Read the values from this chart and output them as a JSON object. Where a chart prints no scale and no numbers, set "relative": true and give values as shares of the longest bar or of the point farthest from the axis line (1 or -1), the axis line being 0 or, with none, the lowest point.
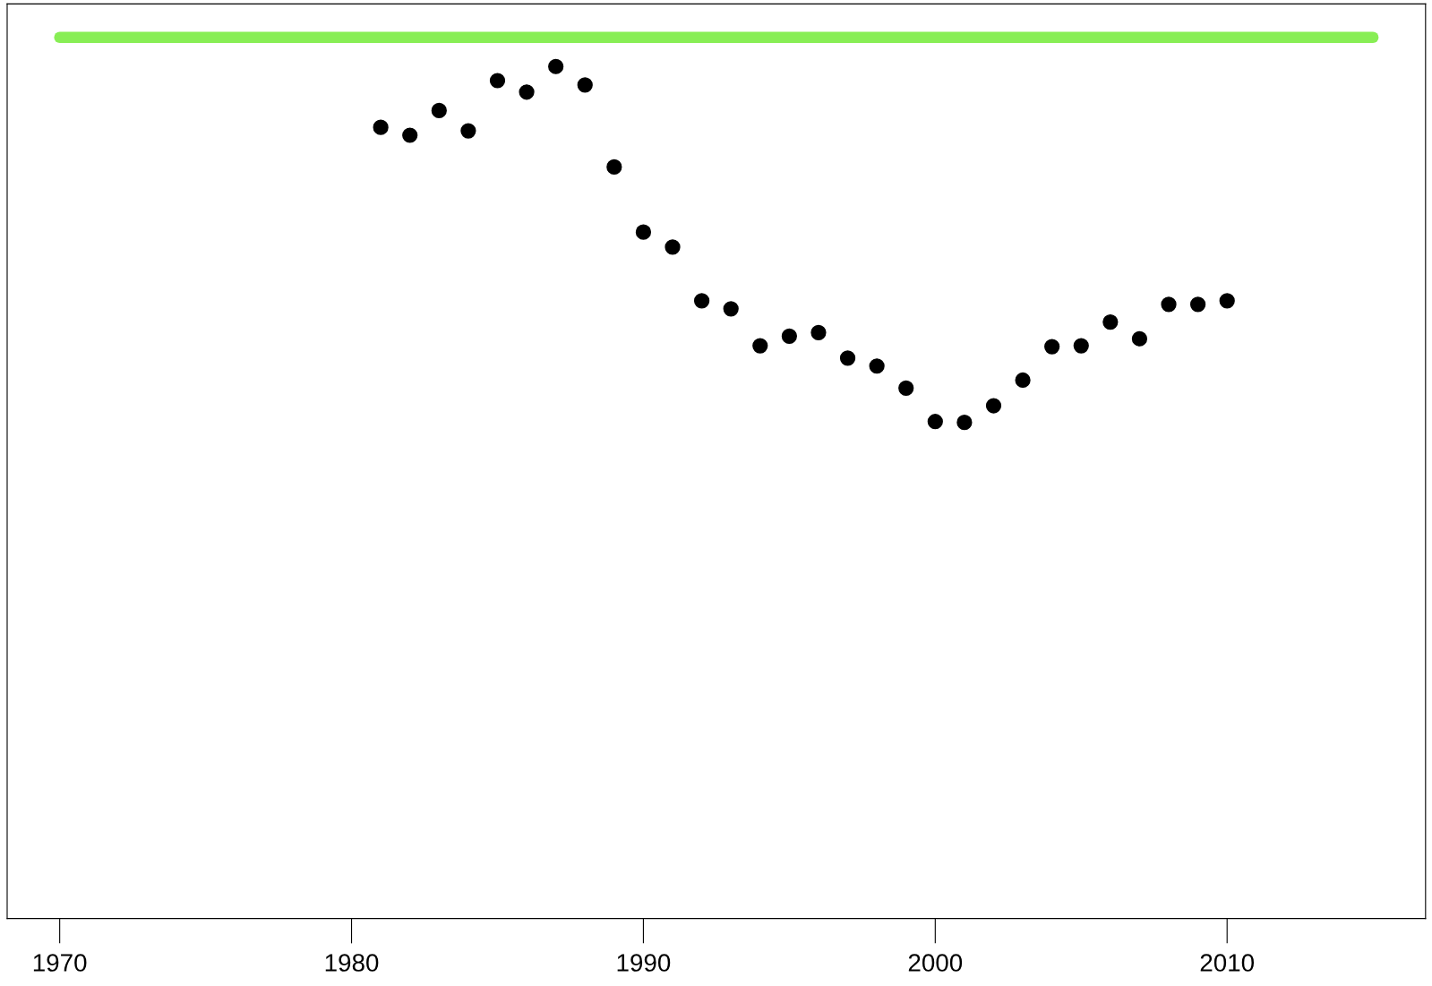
{
  "chart_data": {
    "type": "scatter",
    "relative": true,
    "grid": false,
    "xlim": [
      1968.2,
      2016.8
    ],
    "xticks": [
      1970,
      1980,
      1990,
      2000,
      2010
    ],
    "tick_labels": "x",
    "series": [
      {
        "type": "line",
        "color": "#88ee55",
        "x": [
          1970,
          2015
        ],
        "values": [
          1,
          1
        ]
      },
      {
        "marker": "circle",
        "color": "#000000",
        "x": [
          1981,
          1982,
          1983,
          1984,
          1985,
          1986,
          1987,
          1988,
          1989,
          1990,
          1991,
          1992,
          1993,
          1994,
          1995,
          1996,
          1997,
          1998,
          1999,
          2000,
          2001,
          2002,
          2003,
          2004,
          2005,
          2006,
          2007,
          2008,
          2009,
          2010
        ],
        "values": [
          0.898,
          0.889,
          0.917,
          0.894,
          0.951,
          0.938,
          0.967,
          0.946,
          0.853,
          0.779,
          0.762,
          0.701,
          0.692,
          0.65,
          0.661,
          0.665,
          0.636,
          0.627,
          0.602,
          0.564,
          0.563,
          0.582,
          0.611,
          0.649,
          0.65,
          0.677,
          0.658,
          0.697,
          0.697,
          0.701
        ]
      }
    ]
  }
}
